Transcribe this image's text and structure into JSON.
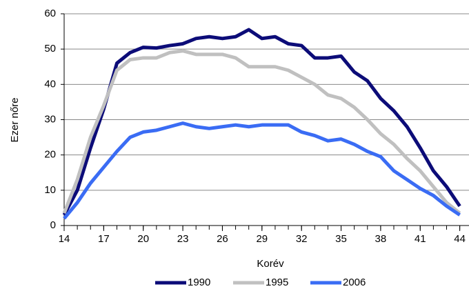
{
  "chart_data": {
    "type": "line",
    "xlabel": "Korév",
    "ylabel": "Ezer nőre",
    "x": [
      14,
      15,
      16,
      17,
      18,
      19,
      20,
      21,
      22,
      23,
      24,
      25,
      26,
      27,
      28,
      29,
      30,
      31,
      32,
      33,
      34,
      35,
      36,
      37,
      38,
      39,
      40,
      41,
      42,
      43,
      44
    ],
    "series": [
      {
        "name": "1990",
        "color": "#0c0c78",
        "values": [
          3,
          10,
          22,
          33,
          46,
          49,
          50.5,
          50.3,
          51,
          51.5,
          53,
          53.5,
          53,
          53.5,
          55.5,
          53,
          53.5,
          51.5,
          51,
          47.5,
          47.5,
          48,
          43.5,
          41,
          36,
          32.5,
          28,
          22,
          15.5,
          11,
          5.5
        ]
      },
      {
        "name": "1995",
        "color": "#c0c0c0",
        "values": [
          3.5,
          13,
          25,
          34,
          44,
          47,
          47.5,
          47.5,
          49,
          49.5,
          48.5,
          48.5,
          48.5,
          47.5,
          45,
          45,
          45,
          44,
          42,
          40,
          37,
          36,
          33.5,
          30,
          26,
          23,
          19,
          15.5,
          11,
          6.5,
          3.5
        ]
      },
      {
        "name": "2006",
        "color": "#3a6cf4",
        "values": [
          2,
          6.5,
          12,
          16.5,
          21,
          25,
          26.5,
          27,
          28,
          29,
          28,
          27.5,
          28,
          28.5,
          28,
          28.5,
          28.5,
          28.5,
          26.5,
          25.5,
          24,
          24.5,
          23,
          21,
          19.5,
          15.5,
          13,
          10.5,
          8.5,
          5.5,
          3
        ]
      }
    ],
    "xlim": [
      14,
      44.7
    ],
    "ylim": [
      0,
      60
    ],
    "xticks": [
      14,
      17,
      20,
      23,
      26,
      29,
      32,
      35,
      38,
      41,
      44
    ],
    "yticks": [
      0,
      10,
      20,
      30,
      40,
      50,
      60
    ],
    "grid": true,
    "legend": "bottom"
  }
}
